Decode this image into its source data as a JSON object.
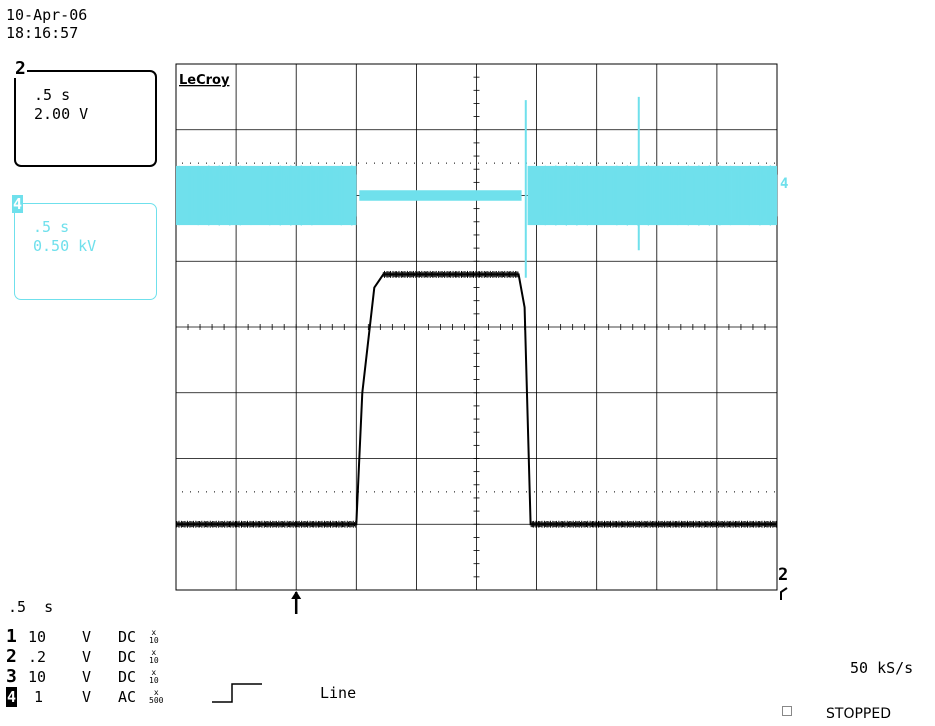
{
  "timestamp": {
    "date": "10-Apr-06",
    "time": "18:16:57"
  },
  "brand": "LeCroy",
  "trace_boxes": [
    {
      "channel": "2",
      "timebase": ".5 s",
      "scale": "2.00 V",
      "color": "#000000"
    },
    {
      "channel": "4",
      "timebase": ".5 s",
      "scale": "0.50 kV",
      "color": "#6fe0ec"
    }
  ],
  "timebase_readout": ".5  s",
  "channels": [
    {
      "num": "1",
      "volts": "10",
      "unit": "V",
      "coupling": "DC",
      "probe_top": "x",
      "probe_bottom": "10"
    },
    {
      "num": "2",
      "volts": ".2",
      "unit": "V",
      "coupling": "DC",
      "probe_top": "x",
      "probe_bottom": "10"
    },
    {
      "num": "3",
      "volts": "10",
      "unit": "V",
      "coupling": "DC",
      "probe_top": "x",
      "probe_bottom": "10"
    },
    {
      "num": "4",
      "volts": "1",
      "unit": "V",
      "coupling": "AC",
      "probe_top": "x",
      "probe_bottom": "500"
    }
  ],
  "trigger": {
    "source": "Line"
  },
  "sample_rate": "50 kS/s",
  "acquisition_status": "STOPPED",
  "markers": {
    "trace4_marker": "4",
    "trace2_marker": "2"
  },
  "colors": {
    "trace4": "#6fe0ec",
    "grid": "#000000",
    "trace2": "#000000"
  },
  "chart_data": {
    "type": "line",
    "grid": {
      "x_divisions": 10,
      "y_divisions": 8
    },
    "x_unit_per_div_s": 0.5,
    "series": [
      {
        "channel": "2",
        "volts_per_div": 2.0,
        "points": [
          [
            0,
            -3.0
          ],
          [
            3.0,
            -3.0
          ],
          [
            3.1,
            -1.0
          ],
          [
            3.3,
            0.6
          ],
          [
            3.45,
            0.8
          ],
          [
            5.7,
            0.8
          ],
          [
            5.8,
            0.3
          ],
          [
            5.9,
            -3.0
          ],
          [
            10,
            -3.0
          ]
        ]
      },
      {
        "channel": "4",
        "volts_per_div": 0.5,
        "points": [
          [
            0,
            2.0
          ],
          [
            3.0,
            2.0
          ],
          [
            3.0,
            2.0
          ],
          [
            5.8,
            2.0
          ],
          [
            10,
            2.0
          ]
        ]
      }
    ]
  }
}
